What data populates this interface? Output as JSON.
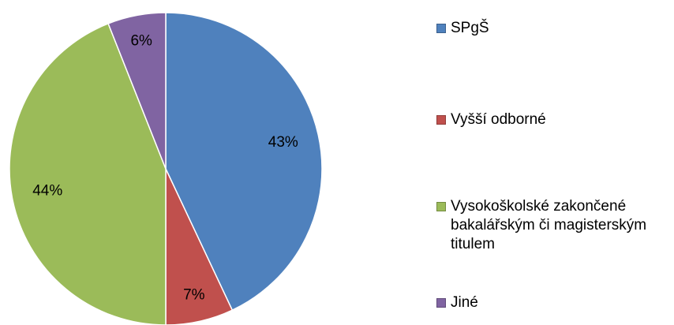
{
  "chart_data": {
    "type": "pie",
    "categories": [
      "SPgŠ",
      "Vyšší odborné",
      "Vysokoškolské zakončené bakalářským či magisterským titulem",
      "Jiné"
    ],
    "values": [
      43,
      7,
      44,
      6
    ],
    "value_labels": [
      "43%",
      "7%",
      "44%",
      "6%"
    ],
    "colors": [
      "#4f81bd",
      "#c0504d",
      "#9bbb59",
      "#8064a2"
    ],
    "legend": "right"
  }
}
